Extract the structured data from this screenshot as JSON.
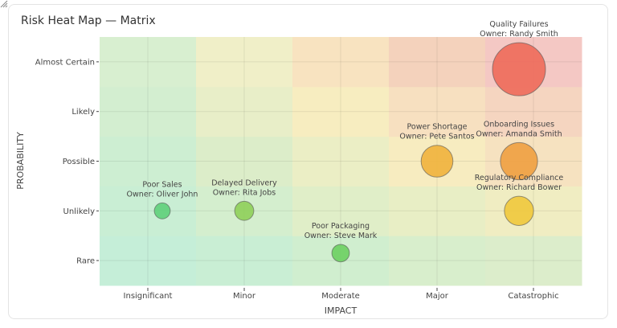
{
  "title": "Risk Heat Map — Matrix",
  "chart_data": {
    "type": "scatter",
    "title": "Risk Heat Map — Matrix",
    "xlabel": "IMPACT",
    "ylabel": "PROBABILITY",
    "x_categories": [
      "Insignificant",
      "Minor",
      "Moderate",
      "Major",
      "Catastrophic"
    ],
    "y_categories": [
      "Rare",
      "Unlikely",
      "Possible",
      "Likely",
      "Almost Certain"
    ],
    "grid": true,
    "heatmap_colors": [
      [
        "#c5eed8",
        "#c9eed4",
        "#d0eecf",
        "#d8eecc",
        "#dcedcb"
      ],
      [
        "#c9eed4",
        "#d4eece",
        "#e0eec8",
        "#e8eec5",
        "#f0edc2"
      ],
      [
        "#cdeed2",
        "#dcedc9",
        "#ebeec5",
        "#f7ecc0",
        "#f6e2c0"
      ],
      [
        "#d3eed0",
        "#e8eec8",
        "#f7edc0",
        "#f7e0c0",
        "#f5d5c0"
      ],
      [
        "#d8efd0",
        "#f0efc8",
        "#f8e3c0",
        "#f4d2bc",
        "#f4c8c4"
      ]
    ],
    "points": [
      {
        "name": "Poor Sales",
        "owner": "Owner: Oliver John",
        "x": 0.15,
        "y": 1,
        "size": 3,
        "color": "#5ecf7a"
      },
      {
        "name": "Delayed Delivery",
        "owner": "Owner: Rita Jobs",
        "x": 1,
        "y": 1,
        "size": 3.6,
        "color": "#8fcf5a"
      },
      {
        "name": "Poor Packaging",
        "owner": "Owner: Steve Mark",
        "x": 2,
        "y": 0.15,
        "size": 3.3,
        "color": "#6ccf60"
      },
      {
        "name": "Power Shortage",
        "owner": "Owner: Pete Santos",
        "x": 3,
        "y": 2,
        "size": 6,
        "color": "#f0b23c"
      },
      {
        "name": "Onboarding Issues",
        "owner": "Owner: Amanda Smith",
        "x": 3.85,
        "y": 2,
        "size": 7,
        "color": "#f0a040"
      },
      {
        "name": "Regulatory Compliance",
        "owner": "Owner: Richard Bower",
        "x": 3.85,
        "y": 1,
        "size": 5.5,
        "color": "#f0c83c"
      },
      {
        "name": "Quality Failures",
        "owner": "Owner: Randy Smith",
        "x": 3.85,
        "y": 3.85,
        "size": 10,
        "color": "#ee6a5a"
      }
    ]
  }
}
